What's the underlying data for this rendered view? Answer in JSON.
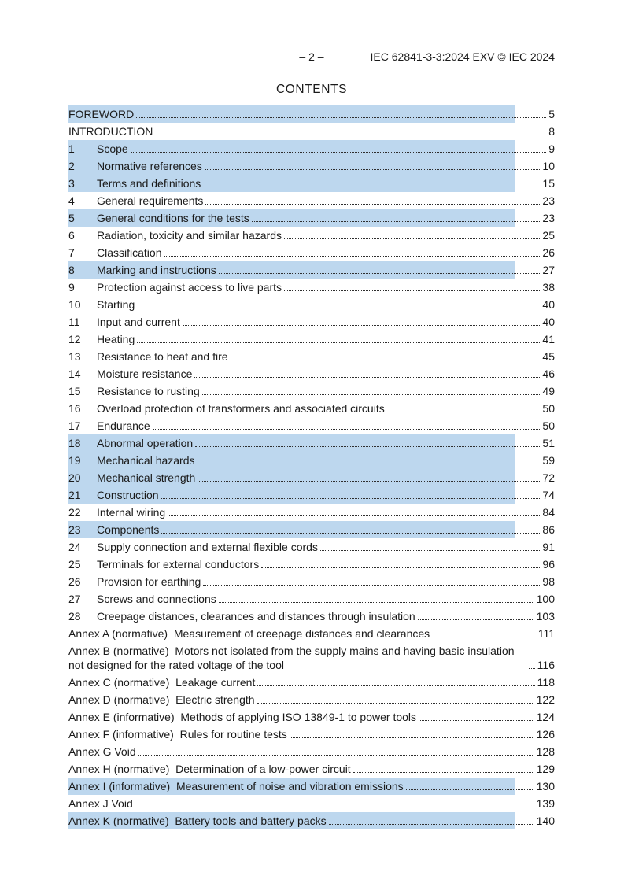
{
  "header": {
    "page_marker": "– 2 –",
    "doc_ref": "IEC 62841-3-3:2024 EXV © IEC 2024"
  },
  "title": "CONTENTS",
  "colors": {
    "highlight": "#bdd7ee",
    "text": "#1a1a1a"
  },
  "toc": {
    "entries": [
      {
        "num": "",
        "label": "FOREWORD",
        "page": "5",
        "highlighted": true
      },
      {
        "num": "",
        "label": "INTRODUCTION",
        "page": "8",
        "highlighted": false
      },
      {
        "num": "1",
        "label": "Scope",
        "page": "9",
        "highlighted": true
      },
      {
        "num": "2",
        "label": "Normative references",
        "page": "10",
        "highlighted": true
      },
      {
        "num": "3",
        "label": "Terms and definitions",
        "page": "15",
        "highlighted": true
      },
      {
        "num": "4",
        "label": "General requirements",
        "page": "23",
        "highlighted": false
      },
      {
        "num": "5",
        "label": "General conditions for the tests",
        "page": "23",
        "highlighted": true
      },
      {
        "num": "6",
        "label": "Radiation, toxicity and similar hazards",
        "page": "25",
        "highlighted": false
      },
      {
        "num": "7",
        "label": "Classification",
        "page": "26",
        "highlighted": false
      },
      {
        "num": "8",
        "label": "Marking and instructions",
        "page": "27",
        "highlighted": true
      },
      {
        "num": "9",
        "label": "Protection against access to live parts",
        "page": "38",
        "highlighted": false
      },
      {
        "num": "10",
        "label": "Starting",
        "page": "40",
        "highlighted": false
      },
      {
        "num": "11",
        "label": "Input and current",
        "page": "40",
        "highlighted": false
      },
      {
        "num": "12",
        "label": "Heating",
        "page": "41",
        "highlighted": false
      },
      {
        "num": "13",
        "label": "Resistance to heat and fire",
        "page": "45",
        "highlighted": false
      },
      {
        "num": "14",
        "label": "Moisture resistance",
        "page": "46",
        "highlighted": false
      },
      {
        "num": "15",
        "label": "Resistance to rusting",
        "page": "49",
        "highlighted": false
      },
      {
        "num": "16",
        "label": "Overload protection of transformers and associated circuits",
        "page": "50",
        "highlighted": false
      },
      {
        "num": "17",
        "label": "Endurance",
        "page": "50",
        "highlighted": false
      },
      {
        "num": "18",
        "label": "Abnormal operation",
        "page": "51",
        "highlighted": true
      },
      {
        "num": "19",
        "label": "Mechanical hazards",
        "page": "59",
        "highlighted": true
      },
      {
        "num": "20",
        "label": "Mechanical strength",
        "page": "72",
        "highlighted": true
      },
      {
        "num": "21",
        "label": "Construction",
        "page": "74",
        "highlighted": true
      },
      {
        "num": "22",
        "label": "Internal wiring",
        "page": "84",
        "highlighted": false
      },
      {
        "num": "23",
        "label": "Components",
        "page": "86",
        "highlighted": true
      },
      {
        "num": "24",
        "label": "Supply connection and external flexible cords",
        "page": "91",
        "highlighted": false
      },
      {
        "num": "25",
        "label": "Terminals for external conductors",
        "page": "96",
        "highlighted": false
      },
      {
        "num": "26",
        "label": "Provision for earthing",
        "page": "98",
        "highlighted": false
      },
      {
        "num": "27",
        "label": "Screws and connections",
        "page": "100",
        "highlighted": false
      },
      {
        "num": "28",
        "label": "Creepage distances, clearances and distances through insulation",
        "page": "103",
        "highlighted": false
      },
      {
        "num": "",
        "label": "Annex A (normative)  Measurement of creepage distances and clearances",
        "page": "111",
        "highlighted": false
      },
      {
        "num": "",
        "label": "Annex B (normative)  Motors not isolated from the supply mains and having basic insulation not designed for the rated voltage of the tool",
        "page": "116",
        "highlighted": false
      },
      {
        "num": "",
        "label": "Annex C (normative)  Leakage current",
        "page": "118",
        "highlighted": false
      },
      {
        "num": "",
        "label": "Annex D (normative)  Electric strength",
        "page": "122",
        "highlighted": false
      },
      {
        "num": "",
        "label": "Annex E (informative)  Methods of applying ISO 13849-1 to power tools",
        "page": "124",
        "highlighted": false
      },
      {
        "num": "",
        "label": "Annex F (informative)  Rules for routine tests",
        "page": "126",
        "highlighted": false
      },
      {
        "num": "",
        "label": "Annex G Void",
        "page": "128",
        "highlighted": false
      },
      {
        "num": "",
        "label": "Annex H (normative)  Determination of a low-power circuit",
        "page": "129",
        "highlighted": false
      },
      {
        "num": "",
        "label": "Annex I (informative)  Measurement of noise and vibration emissions",
        "page": "130",
        "highlighted": true
      },
      {
        "num": "",
        "label": "Annex J Void",
        "page": "139",
        "highlighted": false
      },
      {
        "num": "",
        "label": "Annex K (normative)  Battery tools and battery packs",
        "page": "140",
        "highlighted": true
      }
    ]
  }
}
